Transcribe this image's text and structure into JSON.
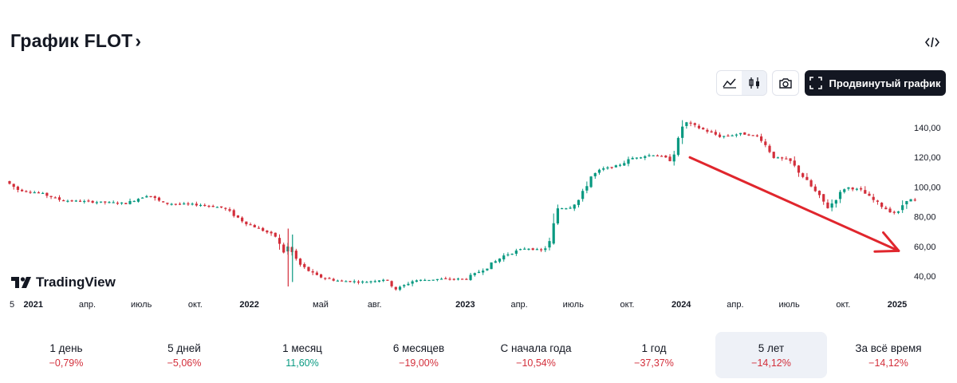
{
  "header": {
    "title": "График FLOT",
    "chevron": "›",
    "embed_icon": "code-brackets-icon"
  },
  "toolbar": {
    "line_icon": "area-chart-icon",
    "candles_icon": "candlestick-icon",
    "snapshot_icon": "camera-icon",
    "advanced_label": "Продвинутый график",
    "advanced_icon": "fullscreen-icon"
  },
  "branding": {
    "logo_text": "TradingView"
  },
  "colors": {
    "up": "#089981",
    "down": "#d32f3b",
    "arrow": "#e0262d",
    "text": "#131722",
    "axis_text": "#131722",
    "active_bg": "#eef1f7"
  },
  "periods": [
    {
      "label": "1 день",
      "value": "−0,79%",
      "trend": "neg"
    },
    {
      "label": "5 дней",
      "value": "−5,06%",
      "trend": "neg"
    },
    {
      "label": "1 месяц",
      "value": "11,60%",
      "trend": "pos"
    },
    {
      "label": "6 месяцев",
      "value": "−19,00%",
      "trend": "neg"
    },
    {
      "label": "С начала года",
      "value": "−10,54%",
      "trend": "neg"
    },
    {
      "label": "1 год",
      "value": "−37,37%",
      "trend": "neg"
    },
    {
      "label": "5 лет",
      "value": "−14,12%",
      "trend": "neg",
      "active": true
    },
    {
      "label": "За всё время",
      "value": "−14,12%",
      "trend": "neg"
    }
  ],
  "chart_data": {
    "type": "candlestick",
    "title": "FLOT",
    "y_ticks": [
      "40,00",
      "60,00",
      "80,00",
      "100,00",
      "120,00",
      "140,00"
    ],
    "y_tick_values": [
      40,
      60,
      80,
      100,
      120,
      140
    ],
    "ylim": [
      30,
      150
    ],
    "x_labels": [
      {
        "label": "5",
        "t": 2020.88,
        "bold": false
      },
      {
        "label": "2021",
        "t": 2021.0,
        "bold": true
      },
      {
        "label": "апр.",
        "t": 2021.25,
        "bold": false
      },
      {
        "label": "июль",
        "t": 2021.5,
        "bold": false
      },
      {
        "label": "окт.",
        "t": 2021.75,
        "bold": false
      },
      {
        "label": "2022",
        "t": 2022.0,
        "bold": true
      },
      {
        "label": "май",
        "t": 2022.33,
        "bold": false
      },
      {
        "label": "авг.",
        "t": 2022.58,
        "bold": false
      },
      {
        "label": "2023",
        "t": 2023.0,
        "bold": true
      },
      {
        "label": "апр.",
        "t": 2023.25,
        "bold": false
      },
      {
        "label": "июль",
        "t": 2023.5,
        "bold": false
      },
      {
        "label": "окт.",
        "t": 2023.75,
        "bold": false
      },
      {
        "label": "2024",
        "t": 2024.0,
        "bold": true
      },
      {
        "label": "апр.",
        "t": 2024.25,
        "bold": false
      },
      {
        "label": "июль",
        "t": 2024.5,
        "bold": false
      },
      {
        "label": "окт.",
        "t": 2024.75,
        "bold": false
      },
      {
        "label": "2025",
        "t": 2025.0,
        "bold": true
      }
    ],
    "xlim": [
      2020.89,
      2025.1
    ],
    "price_path": [
      [
        2020.89,
        104
      ],
      [
        2020.95,
        98
      ],
      [
        2021.05,
        96
      ],
      [
        2021.15,
        91
      ],
      [
        2021.3,
        90
      ],
      [
        2021.45,
        89
      ],
      [
        2021.55,
        95
      ],
      [
        2021.62,
        89
      ],
      [
        2021.8,
        88
      ],
      [
        2021.9,
        86
      ],
      [
        2022.0,
        76
      ],
      [
        2022.08,
        71
      ],
      [
        2022.15,
        66
      ],
      [
        2022.17,
        55
      ],
      [
        2022.2,
        60
      ],
      [
        2022.25,
        48
      ],
      [
        2022.33,
        40
      ],
      [
        2022.42,
        37
      ],
      [
        2022.55,
        36
      ],
      [
        2022.65,
        38
      ],
      [
        2022.7,
        31
      ],
      [
        2022.78,
        37
      ],
      [
        2022.9,
        38
      ],
      [
        2023.02,
        38
      ],
      [
        2023.12,
        46
      ],
      [
        2023.2,
        54
      ],
      [
        2023.3,
        59
      ],
      [
        2023.38,
        57
      ],
      [
        2023.42,
        65
      ],
      [
        2023.44,
        86
      ],
      [
        2023.5,
        86
      ],
      [
        2023.55,
        92
      ],
      [
        2023.6,
        107
      ],
      [
        2023.65,
        112
      ],
      [
        2023.72,
        114
      ],
      [
        2023.8,
        120
      ],
      [
        2023.9,
        122
      ],
      [
        2023.97,
        118
      ],
      [
        2024.0,
        128
      ],
      [
        2024.03,
        144
      ],
      [
        2024.1,
        140
      ],
      [
        2024.2,
        134
      ],
      [
        2024.3,
        136
      ],
      [
        2024.38,
        134
      ],
      [
        2024.45,
        120
      ],
      [
        2024.52,
        118
      ],
      [
        2024.6,
        104
      ],
      [
        2024.7,
        86
      ],
      [
        2024.78,
        100
      ],
      [
        2024.85,
        98
      ],
      [
        2024.9,
        92
      ],
      [
        2024.98,
        84
      ],
      [
        2025.02,
        82
      ],
      [
        2025.06,
        92
      ],
      [
        2025.1,
        91
      ]
    ],
    "annotation": {
      "type": "arrow",
      "from": [
        2024.04,
        120
      ],
      "to": [
        2024.97,
        57
      ]
    }
  }
}
